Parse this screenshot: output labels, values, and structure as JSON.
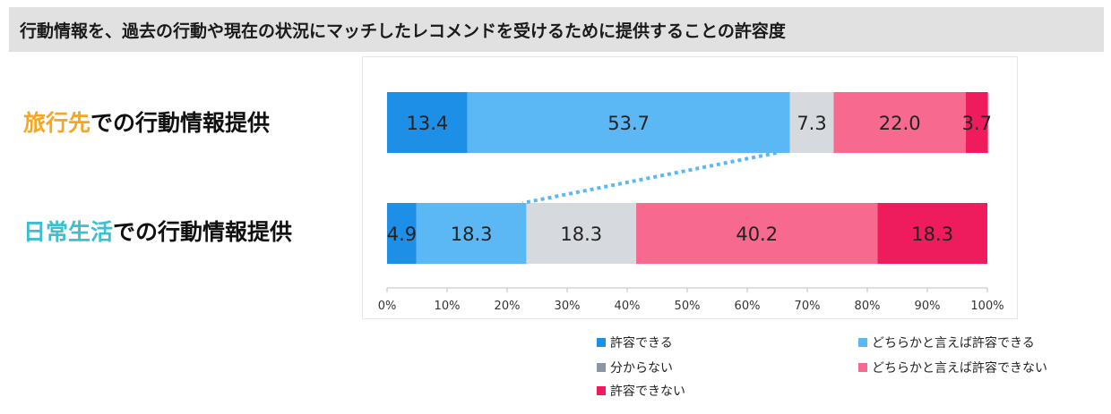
{
  "header": {
    "title": "行動情報を、過去の行動や現在の状況にマッチしたレコメンドを受けるために提供することの許容度"
  },
  "rows": [
    {
      "highlight": "旅行先",
      "rest": "での行動情報提供",
      "highlight_color": "#f5a623"
    },
    {
      "highlight": "日常生活",
      "rest": "での行動情報提供",
      "highlight_color": "#3cbfd0"
    }
  ],
  "chart_data": {
    "type": "bar",
    "orientation": "horizontal",
    "stacked": true,
    "categories": [
      "旅行先での行動情報提供",
      "日常生活での行動情報提供"
    ],
    "series": [
      {
        "name": "許容できる",
        "color": "#1e8fe6",
        "values": [
          13.4,
          4.9
        ]
      },
      {
        "name": "どちらかと言えば許容できる",
        "color": "#5cb8f5",
        "values": [
          53.7,
          18.3
        ]
      },
      {
        "name": "分からない",
        "color": "#d6d9de",
        "legend_color": "#8a96a3",
        "values": [
          7.3,
          18.3
        ]
      },
      {
        "name": "どちらかと言えば許容できない",
        "color": "#f7698f",
        "values": [
          22.0,
          40.2
        ]
      },
      {
        "name": "許容できない",
        "color": "#ee1c5c",
        "values": [
          3.7,
          18.3
        ]
      }
    ],
    "x_ticks": [
      "0%",
      "10%",
      "20%",
      "30%",
      "40%",
      "50%",
      "60%",
      "70%",
      "80%",
      "90%",
      "100%"
    ],
    "xlim": [
      0,
      100
    ],
    "connector": {
      "from_row": 0,
      "to_row": 1,
      "cumulative_series_count": 2,
      "color": "#5cb8f5",
      "style": "dotted"
    },
    "legend_position": "bottom-right"
  }
}
